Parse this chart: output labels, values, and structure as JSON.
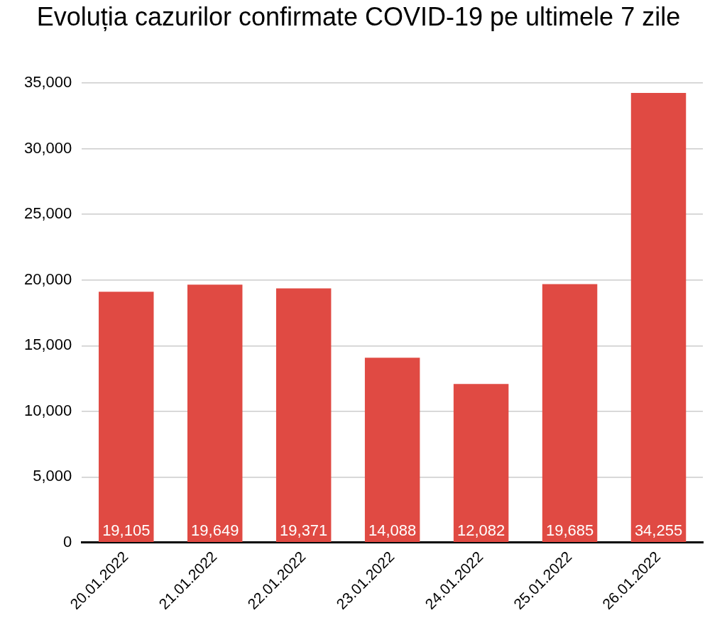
{
  "chart_data": {
    "type": "bar",
    "title": "Evoluția cazurilor confirmate COVID-19 pe ultimele 7 zile",
    "categories": [
      "20.01.2022",
      "21.01.2022",
      "22.01.2022",
      "23.01.2022",
      "24.01.2022",
      "25.01.2022",
      "26.01.2022"
    ],
    "values": [
      19105,
      19649,
      19371,
      14088,
      12082,
      19685,
      34255
    ],
    "value_labels": [
      "19,105",
      "19,649",
      "19,371",
      "14,088",
      "12,082",
      "19,685",
      "34,255"
    ],
    "color": "#e04a43",
    "ylim": [
      0,
      35000
    ],
    "yticks": [
      0,
      {
        "value": 5000,
        "label": "5,000"
      },
      {
        "value": 10000,
        "label": "10,000"
      },
      {
        "value": 15000,
        "label": "15,000"
      },
      {
        "value": 20000,
        "label": "20,000"
      },
      {
        "value": 25000,
        "label": "25,000"
      },
      {
        "value": 30000,
        "label": "30,000"
      },
      {
        "value": 35000,
        "label": "35,000"
      }
    ],
    "grid": "y",
    "legend": false
  }
}
